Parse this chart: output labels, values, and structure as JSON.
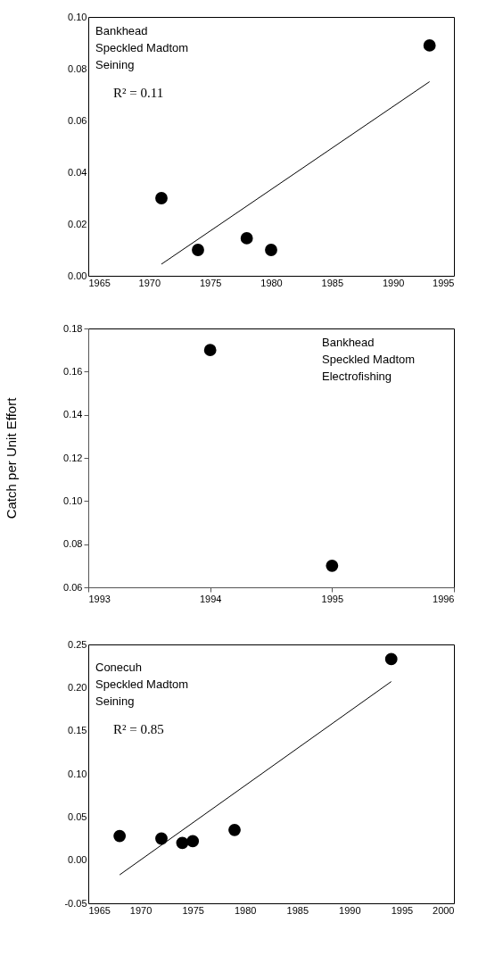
{
  "chart_data": [
    {
      "type": "scatter",
      "xlim": [
        1965,
        1995
      ],
      "xticks": [
        1965,
        1970,
        1975,
        1980,
        1985,
        1990,
        1995
      ],
      "ylim": [
        0.0,
        0.1
      ],
      "yticks": [
        {
          "value": 0,
          "label": "0.00"
        },
        {
          "value": 0.02,
          "label": "0.02"
        },
        {
          "value": 0.04,
          "label": "0.04"
        },
        {
          "value": 0.06,
          "label": "0.06"
        },
        {
          "value": 0.08,
          "label": "0.08"
        },
        {
          "value": 0.1,
          "label": "0.10"
        }
      ],
      "grid": false,
      "annotations": [
        "Bankhead\nSpeckled Madtom\nSeining",
        "R² = 0.11"
      ],
      "series": [
        {
          "color": "#000000",
          "marker": "circle",
          "x": [
            1971,
            1974,
            1978,
            1980,
            1993
          ],
          "values": [
            0.03,
            0.01,
            0.0145,
            0.01,
            0.089
          ]
        },
        {
          "type": "line",
          "color": "#000000",
          "marker": "none",
          "line_style": "solid",
          "x": [
            1971,
            1993
          ],
          "values": [
            0.0045,
            0.075
          ]
        }
      ]
    },
    {
      "type": "scatter",
      "ylabel": "Catch per Unit Effort",
      "xlim": [
        1993,
        1996
      ],
      "xticks": [
        1993,
        1994,
        1995,
        1996
      ],
      "ylim": [
        0.06,
        0.18
      ],
      "yticks": [
        {
          "value": 0.06,
          "label": "0.06"
        },
        {
          "value": 0.08,
          "label": "0.08"
        },
        {
          "value": 0.1,
          "label": "0.10"
        },
        {
          "value": 0.12,
          "label": "0.12"
        },
        {
          "value": 0.14,
          "label": "0.14"
        },
        {
          "value": 0.16,
          "label": "0.16"
        },
        {
          "value": 0.18,
          "label": "0.18"
        }
      ],
      "grid": false,
      "annotations": [
        "Bankhead\nSpeckled Madtom\nElectrofishing"
      ],
      "series": [
        {
          "color": "#000000",
          "marker": "circle",
          "x": [
            1994,
            1995
          ],
          "values": [
            0.17,
            0.07
          ]
        }
      ]
    },
    {
      "type": "scatter",
      "xlim": [
        1965,
        2000
      ],
      "xticks": [
        1965,
        1970,
        1975,
        1980,
        1985,
        1990,
        1995,
        2000
      ],
      "ylim": [
        -0.05,
        0.25
      ],
      "yticks": [
        {
          "value": -0.05,
          "label": "-0.05"
        },
        {
          "value": 0,
          "label": "0.00"
        },
        {
          "value": 0.05,
          "label": "0.05"
        },
        {
          "value": 0.1,
          "label": "0.10"
        },
        {
          "value": 0.15,
          "label": "0.15"
        },
        {
          "value": 0.2,
          "label": "0.20"
        },
        {
          "value": 0.25,
          "label": "0.25"
        }
      ],
      "grid": false,
      "annotations": [
        "Conecuh\nSpeckled Madtom\nSeining",
        "R² = 0.85"
      ],
      "series": [
        {
          "color": "#000000",
          "marker": "circle",
          "x": [
            1968,
            1972,
            1974,
            1975,
            1979,
            1994
          ],
          "values": [
            0.028,
            0.025,
            0.02,
            0.022,
            0.035,
            0.233
          ]
        },
        {
          "type": "line",
          "color": "#000000",
          "marker": "none",
          "line_style": "solid",
          "x": [
            1968,
            1994
          ],
          "values": [
            -0.017,
            0.207
          ]
        }
      ]
    }
  ]
}
